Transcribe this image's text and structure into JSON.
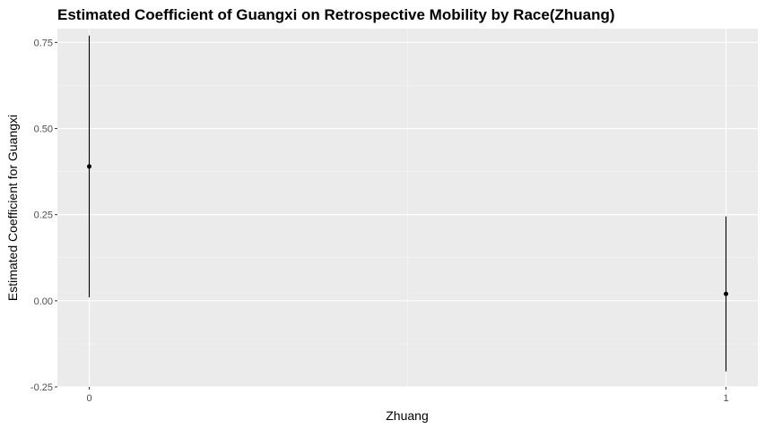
{
  "chart_data": {
    "type": "scatter",
    "title": "Estimated Coefficient of Guangxi on Retrospective Mobility by Race(Zhuang)",
    "xlabel": "Zhuang",
    "ylabel": "Estimated Coefficient for Guangxi",
    "x_ticks": [
      {
        "value": 0,
        "label": "0"
      },
      {
        "value": 1,
        "label": "1"
      }
    ],
    "y_ticks": [
      {
        "value": -0.25,
        "label": "-0.25"
      },
      {
        "value": 0.0,
        "label": "0.00"
      },
      {
        "value": 0.25,
        "label": "0.25"
      },
      {
        "value": 0.5,
        "label": "0.50"
      },
      {
        "value": 0.75,
        "label": "0.75"
      }
    ],
    "xlim": [
      -0.05,
      1.05
    ],
    "ylim": [
      -0.25,
      0.79
    ],
    "grid": true,
    "points": [
      {
        "x": 0,
        "y": 0.39,
        "ymin": 0.01,
        "ymax": 0.77
      },
      {
        "x": 1,
        "y": 0.02,
        "ymin": -0.205,
        "ymax": 0.245
      }
    ],
    "colors": {
      "panel_background": "#ebebeb",
      "grid_major": "#ffffff",
      "grid_minor": "#f5f5f5",
      "point": "#000000",
      "errorbar": "#000000",
      "tick_text": "#4d4d4d",
      "tick_mark": "#333333"
    }
  }
}
